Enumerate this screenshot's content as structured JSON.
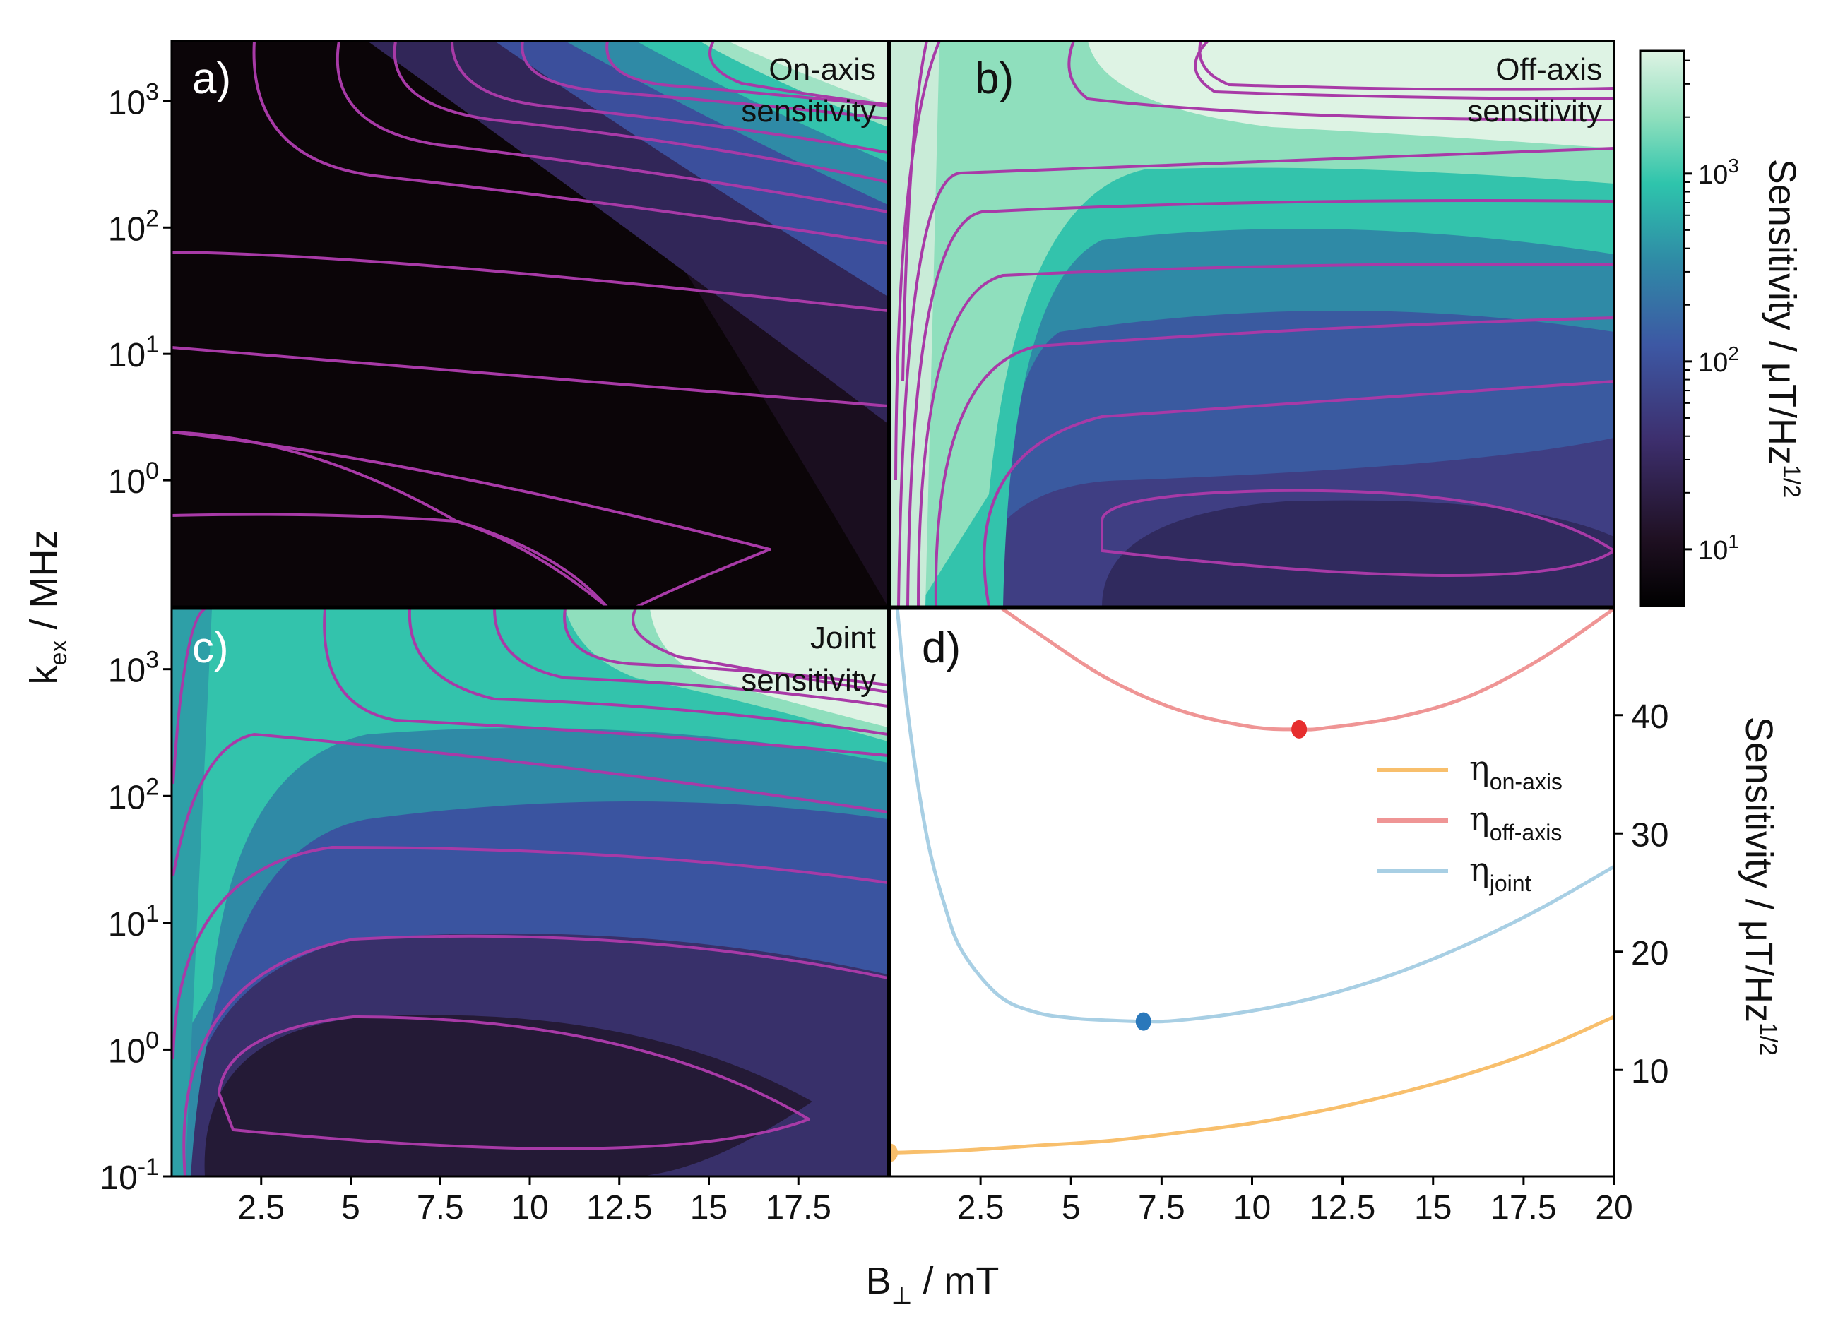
{
  "figure": {
    "xlabel_main": "B",
    "xlabel_sub": "⊥",
    "xlabel_rest": " / mT",
    "ylabel_main": "k",
    "ylabel_sub": "ex",
    "ylabel_rest": " / MHz",
    "colors": {
      "contour": "#a83aa7",
      "on_axis": "#f8bf6c",
      "off_axis": "#ef9595",
      "joint": "#a8cfe4",
      "marker_on": "#f8bf6c",
      "marker_off": "#e62e2e",
      "marker_joint": "#2a78bb"
    }
  },
  "chart_data": [
    {
      "type": "heatmap",
      "panel": "a)",
      "annotation": [
        "On-axis",
        "sensitivity"
      ],
      "x_range_mT": [
        0,
        20
      ],
      "y_range_MHz_log": [
        0.1,
        3000
      ],
      "contour_levels": 9,
      "xticks": [
        "2.5",
        "5",
        "7.5",
        "10",
        "12.5",
        "15",
        "17.5"
      ],
      "yticks": [
        {
          "base": "10",
          "exp": "3"
        },
        {
          "base": "10",
          "exp": "2"
        },
        {
          "base": "10",
          "exp": "1"
        },
        {
          "base": "10",
          "exp": "0"
        }
      ]
    },
    {
      "type": "heatmap",
      "panel": "b)",
      "annotation": [
        "Off-axis",
        "sensitivity"
      ],
      "x_range_mT": [
        0,
        20
      ],
      "y_range_MHz_log": [
        0.1,
        3000
      ],
      "contour_levels": 9
    },
    {
      "type": "heatmap",
      "panel": "c)",
      "annotation": [
        "Joint",
        "sensitivity"
      ],
      "x_range_mT": [
        0,
        20
      ],
      "y_range_MHz_log": [
        0.1,
        3000
      ],
      "contour_levels": 9,
      "xticks": [
        "2.5",
        "5",
        "7.5",
        "10",
        "12.5",
        "15",
        "17.5"
      ],
      "yticks": [
        {
          "base": "10",
          "exp": "3"
        },
        {
          "base": "10",
          "exp": "2"
        },
        {
          "base": "10",
          "exp": "1"
        },
        {
          "base": "10",
          "exp": "0"
        },
        {
          "base": "10",
          "exp": "-1"
        }
      ]
    },
    {
      "type": "line",
      "panel": "d)",
      "xlim": [
        0,
        20
      ],
      "ylim": [
        1,
        49
      ],
      "xticks": [
        "2.5",
        "5",
        "7.5",
        "10",
        "12.5",
        "15",
        "17.5",
        "20"
      ],
      "yticks": [
        "10",
        "20",
        "30",
        "40"
      ],
      "ylabel_main": "Sensitivity / μT/Hz",
      "ylabel_sup": "1/2",
      "series": [
        {
          "name": "η",
          "name_sub": "on-axis",
          "color_key": "on_axis",
          "x": [
            0,
            2,
            4,
            6,
            8,
            10,
            12,
            14,
            16,
            18,
            20
          ],
          "y": [
            3.0,
            3.2,
            3.6,
            4.0,
            4.7,
            5.5,
            6.6,
            8.0,
            9.7,
            11.8,
            14.5
          ],
          "min": {
            "x": 0,
            "y": 3.0
          }
        },
        {
          "name": "η",
          "name_sub": "off-axis",
          "color_key": "off_axis",
          "x": [
            3.1,
            4,
            6,
            8,
            10,
            11.3,
            12,
            14,
            16,
            18,
            20
          ],
          "y": [
            49,
            47.1,
            43.1,
            40.4,
            39.0,
            38.8,
            38.9,
            39.8,
            41.6,
            44.8,
            49.0
          ],
          "min": {
            "x": 11.3,
            "y": 38.8
          }
        },
        {
          "name": "η",
          "name_sub": "joint",
          "color_key": "joint",
          "x": [
            0.2,
            0.5,
            1,
            1.5,
            2,
            3,
            4,
            5,
            6,
            7,
            8,
            10,
            12,
            14,
            16,
            18,
            20
          ],
          "y": [
            49,
            40,
            30,
            24,
            20,
            16.3,
            14.9,
            14.4,
            14.2,
            14.1,
            14.2,
            15.0,
            16.3,
            18.2,
            20.7,
            23.7,
            27.2
          ],
          "min": {
            "x": 7.0,
            "y": 14.1
          }
        }
      ]
    }
  ],
  "colorbar": {
    "scale": "log",
    "range": [
      5,
      4500
    ],
    "ticks": [
      {
        "base": "10",
        "exp": "3",
        "value": 1000
      },
      {
        "base": "10",
        "exp": "2",
        "value": 100
      },
      {
        "base": "10",
        "exp": "1",
        "value": 10
      }
    ],
    "label_main": "Sensitivity / μT/Hz",
    "label_sup": "1/2"
  }
}
